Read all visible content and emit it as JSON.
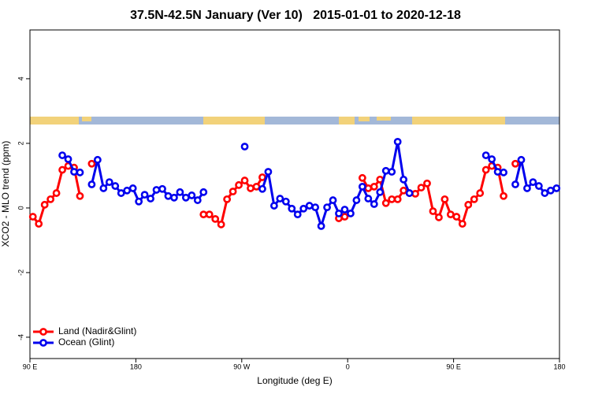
{
  "chart_data": {
    "type": "line",
    "title": "37.5N-42.5N January (Ver 10)   2015-01-01 to 2020-12-18",
    "x_label": "Longitude (deg E)",
    "y_label": "XCO2 - MLO trend (ppm)",
    "xlim": [
      90,
      540
    ],
    "ylim": [
      -4.66,
      5.51
    ],
    "xticks": [
      {
        "value": 90,
        "label": "90 E"
      },
      180,
      {
        "value": 270,
        "label": "90 W"
      },
      {
        "value": 360,
        "label": "0"
      },
      {
        "value": 450,
        "label": "90 E"
      },
      {
        "value": 540,
        "label": "180"
      }
    ],
    "yticks": [
      -4,
      -2,
      0,
      2,
      4
    ],
    "legend": "bottom-left",
    "x": [
      92.5,
      97.5,
      102.5,
      107.5,
      112.5,
      117.5,
      122.5,
      127.5,
      132.5,
      137.5,
      142.5,
      147.5,
      152.5,
      157.5,
      162.5,
      167.5,
      172.5,
      177.5,
      182.5,
      187.5,
      192.5,
      197.5,
      202.5,
      207.5,
      212.5,
      217.5,
      222.5,
      227.5,
      232.5,
      237.5,
      242.5,
      247.5,
      252.5,
      257.5,
      262.5,
      267.5,
      272.5,
      277.5,
      282.5,
      287.5,
      292.5,
      297.5,
      302.5,
      307.5,
      312.5,
      317.5,
      322.5,
      327.5,
      332.5,
      337.5,
      342.5,
      347.5,
      352.5,
      357.5,
      362.5,
      367.5,
      372.5,
      377.5,
      382.5,
      387.5,
      392.5,
      397.5,
      402.5,
      407.5,
      412.5,
      417.5,
      422.5,
      427.5,
      432.5,
      437.5,
      442.5,
      447.5,
      452.5,
      457.5,
      462.5,
      467.5,
      472.5,
      477.5,
      482.5,
      487.5,
      492.5,
      497.5,
      502.5,
      507.5,
      512.5,
      517.5,
      522.5,
      527.5,
      532.5,
      537.5
    ],
    "series": [
      {
        "name": "Land (Nadir&Glint)",
        "color": "#ff0000",
        "values": [
          -0.27,
          -0.49,
          0.1,
          0.27,
          0.46,
          1.18,
          1.3,
          1.25,
          0.37,
          null,
          1.37,
          null,
          null,
          null,
          null,
          null,
          null,
          null,
          null,
          null,
          null,
          null,
          null,
          null,
          null,
          null,
          null,
          null,
          null,
          -0.2,
          -0.2,
          -0.34,
          -0.51,
          0.27,
          0.51,
          0.71,
          0.85,
          0.61,
          0.66,
          0.95,
          null,
          null,
          null,
          null,
          null,
          null,
          null,
          null,
          null,
          null,
          null,
          null,
          -0.32,
          -0.27,
          null,
          null,
          0.93,
          0.61,
          0.66,
          0.88,
          0.15,
          0.27,
          0.27,
          0.54,
          0.46,
          0.44,
          0.63,
          0.76,
          -0.1,
          -0.29,
          0.27,
          -0.2,
          -0.27,
          -0.49,
          0.1,
          0.27,
          0.46,
          1.18,
          1.3,
          1.25,
          0.37,
          null,
          1.37,
          null,
          null,
          null,
          null,
          null,
          null,
          null
        ]
      },
      {
        "name": "Ocean (Glint)",
        "color": "#0000ee",
        "values": [
          null,
          null,
          null,
          null,
          null,
          1.63,
          1.51,
          1.12,
          1.1,
          null,
          0.73,
          1.49,
          0.61,
          0.8,
          0.68,
          0.46,
          0.54,
          0.61,
          0.2,
          0.41,
          0.29,
          0.56,
          0.59,
          0.37,
          0.32,
          0.49,
          0.32,
          0.39,
          0.24,
          0.49,
          null,
          null,
          null,
          null,
          null,
          null,
          1.9,
          null,
          null,
          0.59,
          1.12,
          0.07,
          0.29,
          0.2,
          -0.02,
          -0.2,
          -0.02,
          0.07,
          0.02,
          -0.56,
          0.02,
          0.24,
          -0.17,
          -0.05,
          -0.17,
          0.24,
          0.66,
          0.29,
          0.12,
          0.49,
          1.15,
          1.12,
          2.05,
          0.88,
          0.46,
          null,
          null,
          null,
          null,
          null,
          null,
          null,
          null,
          null,
          null,
          null,
          null,
          1.63,
          1.51,
          1.12,
          1.1,
          null,
          0.73,
          1.49,
          0.61,
          0.8,
          0.68,
          0.46,
          0.54,
          0.61
        ]
      }
    ]
  }
}
